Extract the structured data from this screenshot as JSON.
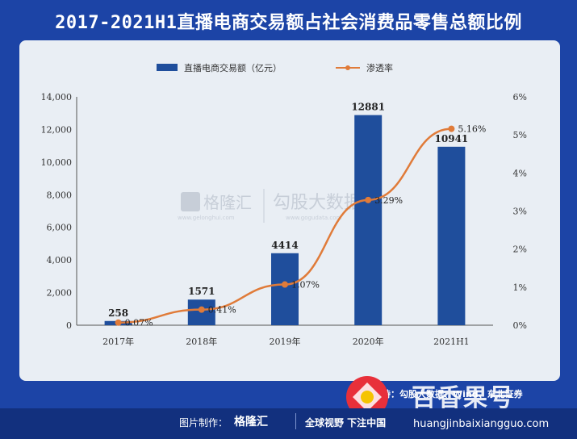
{
  "header": {
    "title": "2017-2021H1直播电商交易额占社会消费品零售总额比例"
  },
  "chart_data": {
    "type": "bar+line",
    "categories": [
      "2017年",
      "2018年",
      "2019年",
      "2020年",
      "2021H1"
    ],
    "series": [
      {
        "name": "直播电商交易额（亿元）",
        "type": "bar",
        "axis": "left",
        "values": [
          258,
          1571,
          4414,
          12881,
          10941
        ],
        "labels": [
          "258",
          "1571",
          "4414",
          "12881",
          "10941"
        ]
      },
      {
        "name": "渗透率",
        "type": "line",
        "axis": "right",
        "values": [
          0.07,
          0.41,
          1.07,
          3.29,
          5.16
        ],
        "labels": [
          "0.07%",
          "0.41%",
          "1.07%",
          "3.29%",
          "5.16%"
        ]
      }
    ],
    "ylim_left": [
      0,
      14000
    ],
    "ylim_right": [
      0,
      6
    ],
    "left_ticks": [
      "0",
      "2,000",
      "4,000",
      "6,000",
      "8,000",
      "10,000",
      "12,000",
      "14,000"
    ],
    "right_ticks": [
      "0%",
      "1%",
      "2%",
      "3%",
      "4%",
      "5%",
      "6%"
    ],
    "legend_position": "top-center",
    "grid": false,
    "colors": {
      "bar": "#1F4E9C",
      "line": "#E07B39"
    }
  },
  "watermark": {
    "brand": "格隆汇",
    "url": "www.gelonghui.com",
    "partner": "勾股大数据",
    "partner_url": "www.gogudata.com"
  },
  "source": "数据支持：勾股大数据、Wind、东北证券",
  "footer": {
    "label": "图片制作：",
    "brand": "格隆汇",
    "slogan": "全球视野 下注中国",
    "site_name": "百香果号",
    "site_url": "huangjinbaixiangguo.com"
  },
  "colors": {
    "background": "#1C44A6",
    "panel": "#E9EEF4"
  }
}
